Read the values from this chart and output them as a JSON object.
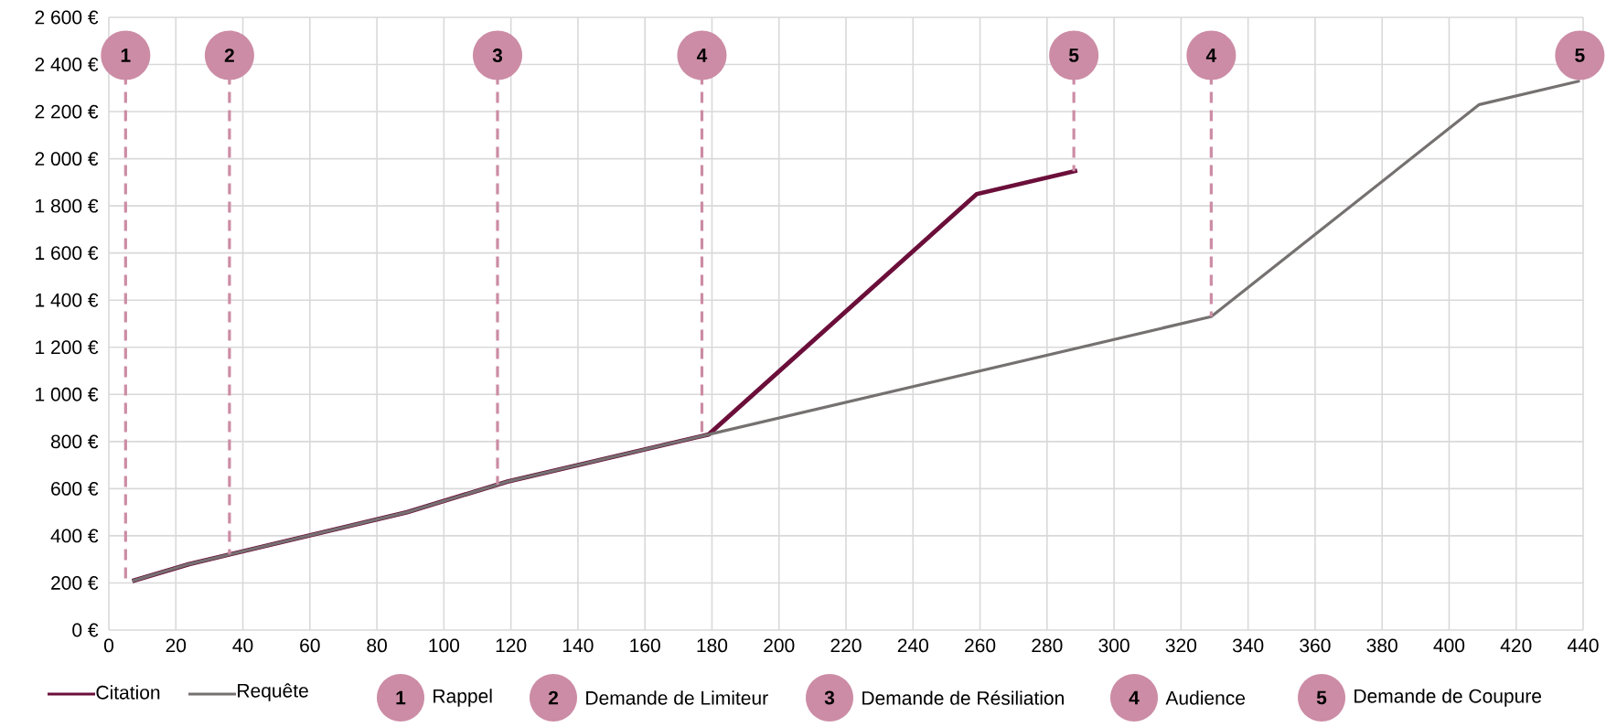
{
  "chart_data": {
    "type": "line",
    "series": [
      {
        "name": "Citation",
        "color": "#6b0f3a",
        "x": [
          7,
          24,
          89,
          119,
          179,
          259,
          289
        ],
        "values": [
          208,
          280,
          500,
          630,
          830,
          1850,
          1950
        ]
      },
      {
        "name": "Requête",
        "color": "#767171",
        "x": [
          7,
          24,
          89,
          119,
          179,
          329,
          409,
          439
        ],
        "values": [
          208,
          280,
          500,
          630,
          830,
          1330,
          2230,
          2330
        ]
      }
    ],
    "xlim": [
      0,
      440
    ],
    "xticks": [
      0,
      20,
      40,
      60,
      80,
      100,
      120,
      140,
      160,
      180,
      200,
      220,
      240,
      260,
      280,
      300,
      320,
      340,
      360,
      380,
      400,
      420,
      440
    ],
    "ylim": [
      0,
      2600
    ],
    "yticks": [
      {
        "value": 0,
        "label": "0 €"
      },
      {
        "value": 200,
        "label": "200 €"
      },
      {
        "value": 400,
        "label": "400 €"
      },
      {
        "value": 600,
        "label": "600 €"
      },
      {
        "value": 800,
        "label": "800 €"
      },
      {
        "value": 1000,
        "label": "1 000 €"
      },
      {
        "value": 1200,
        "label": "1 200 €"
      },
      {
        "value": 1400,
        "label": "1 400 €"
      },
      {
        "value": 1600,
        "label": "1 600 €"
      },
      {
        "value": 1800,
        "label": "1 800 €"
      },
      {
        "value": 2000,
        "label": "2 000 €"
      },
      {
        "value": 2200,
        "label": "2 200 €"
      },
      {
        "value": 2400,
        "label": "2 400 €"
      },
      {
        "value": 2600,
        "label": "2 600 €"
      }
    ],
    "grid": true,
    "legend": "bottom left",
    "marker": "none",
    "line_style": "solid",
    "ref_lines": [
      {
        "axis": "x",
        "value": 5,
        "color": "#cc8ca5",
        "line_style": "dashed"
      },
      {
        "axis": "x",
        "value": 36,
        "color": "#cc8ca5",
        "line_style": "dashed"
      },
      {
        "axis": "x",
        "value": 116,
        "color": "#cc8ca5",
        "line_style": "dashed"
      },
      {
        "axis": "x",
        "value": 177,
        "color": "#cc8ca5",
        "line_style": "dashed"
      },
      {
        "axis": "x",
        "value": 288,
        "color": "#cc8ca5",
        "line_style": "dashed"
      },
      {
        "axis": "x",
        "value": 329,
        "color": "#cc8ca5",
        "line_style": "dashed"
      }
    ],
    "annotations": [
      "1",
      "2",
      "3",
      "4",
      "5",
      "4",
      "5",
      "Rappel",
      "Demande de Limiteur",
      "Demande de Résiliation",
      "Audience",
      "Demande de Coupure"
    ]
  }
}
